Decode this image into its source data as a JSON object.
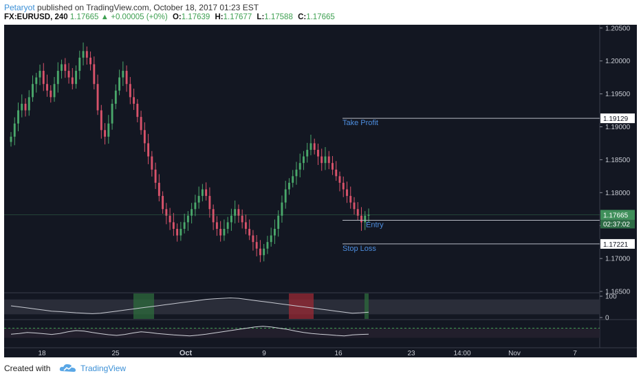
{
  "header": {
    "author": "Petaryot",
    "published_text": "published on TradingView.com, October 18, 2017 01:23 EST",
    "symbol": "FX:EURUSD, 240",
    "last": "1.17665",
    "change_arrow": "▲",
    "change": "+0.00005 (+0%)",
    "o_label": "O:",
    "o_value": "1.17639",
    "h_label": "H:",
    "h_value": "1.17677",
    "l_label": "L:",
    "l_value": "1.17588",
    "c_label": "C:",
    "c_value": "1.17665"
  },
  "footer": {
    "created_with": "Created with",
    "brand": "TradingView"
  },
  "colors": {
    "background": "#131722",
    "up_candle": "#4aa86b",
    "down_candle": "#d9536b",
    "accent_blue": "#4d8ee0",
    "price_tag_green": "#3f8f5a"
  },
  "chart_data": {
    "type": "candlestick",
    "ylim": [
      1.165,
      1.2055
    ],
    "y_ticks": [
      "1.20500",
      "1.20000",
      "1.19500",
      "1.19000",
      "1.18500",
      "1.18000",
      "1.17500",
      "1.17000",
      "1.16500"
    ],
    "x_ticks": [
      "18",
      "25",
      "Oct",
      "9",
      "16",
      "23",
      "14:00",
      "Nov",
      "7"
    ],
    "close_series": [
      1.1885,
      1.1905,
      1.1925,
      1.1935,
      1.1925,
      1.1945,
      1.1965,
      1.1975,
      1.1985,
      1.1965,
      1.1955,
      1.1945,
      1.1965,
      1.1985,
      1.1995,
      1.1985,
      1.1975,
      1.1965,
      1.1985,
      1.2005,
      1.2015,
      1.2005,
      1.1995,
      1.1965,
      1.1925,
      1.1895,
      1.1885,
      1.1905,
      1.1935,
      1.1955,
      1.1975,
      1.1985,
      1.1965,
      1.1945,
      1.1935,
      1.1915,
      1.1895,
      1.1875,
      1.1855,
      1.1835,
      1.1815,
      1.1795,
      1.1775,
      1.1765,
      1.1755,
      1.1745,
      1.1735,
      1.1745,
      1.1755,
      1.1765,
      1.1775,
      1.1785,
      1.1795,
      1.1805,
      1.1795,
      1.1775,
      1.1755,
      1.1745,
      1.1735,
      1.1745,
      1.1755,
      1.1765,
      1.1775,
      1.1765,
      1.1755,
      1.1745,
      1.1735,
      1.1725,
      1.1715,
      1.1705,
      1.1715,
      1.1725,
      1.1735,
      1.1745,
      1.1765,
      1.1785,
      1.1805,
      1.1815,
      1.1825,
      1.1835,
      1.1845,
      1.1855,
      1.1865,
      1.1875,
      1.1865,
      1.1855,
      1.1845,
      1.1855,
      1.1845,
      1.1835,
      1.1825,
      1.1815,
      1.1805,
      1.1795,
      1.1785,
      1.1775,
      1.1765,
      1.1755,
      1.1765,
      1.17665
    ],
    "levels": [
      {
        "label": "Take Profit",
        "value": 1.19129,
        "tag": "1.19129"
      },
      {
        "label": "Entry",
        "value": 1.17581,
        "tag": "1.17581"
      },
      {
        "label": "Stop Loss",
        "value": 1.17221,
        "tag": "1.17221"
      }
    ],
    "last_price": {
      "value": 1.17665,
      "tag": "1.17665",
      "countdown": "02:37:02"
    },
    "oscillator": {
      "ticks": [
        "100",
        "0"
      ],
      "values": [
        55,
        50,
        45,
        40,
        35,
        30,
        28,
        25,
        22,
        20,
        18,
        20,
        25,
        30,
        35,
        40,
        45,
        50,
        55,
        60,
        65,
        70,
        75,
        80,
        85,
        88,
        90,
        92,
        90,
        85,
        80,
        75,
        70,
        65,
        60,
        55,
        50,
        45,
        40,
        35,
        30,
        25,
        20,
        22,
        25
      ]
    },
    "rsi_values": [
      45,
      48,
      52,
      50,
      47,
      44,
      48,
      55,
      60,
      58,
      52,
      47,
      43,
      40,
      44,
      50,
      55,
      52,
      48,
      45,
      42,
      40,
      38,
      41,
      45,
      50,
      55,
      60,
      65,
      70,
      75,
      78,
      75,
      70,
      65,
      58,
      52,
      48,
      45,
      43,
      40,
      38,
      42,
      44,
      45
    ]
  }
}
